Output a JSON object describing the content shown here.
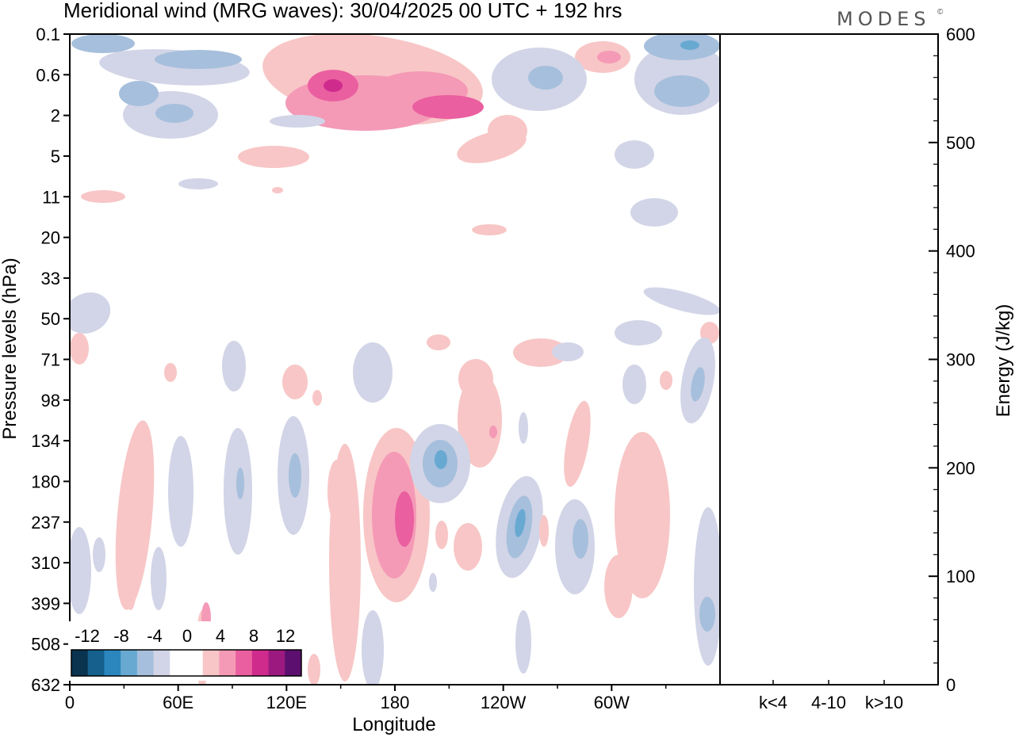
{
  "header": {
    "title": "Meridional wind (MRG waves):  30/04/2025  00 UTC  + 192 hrs",
    "logo": "MODES",
    "logo_mark": "©"
  },
  "chart_data": [
    {
      "type": "heatmap",
      "title": "Meridional wind (MRG waves):  30/04/2025  00 UTC  + 192 hrs",
      "xlabel": "Longitude",
      "ylabel": "Pressure levels (hPa)",
      "x_ticks": [
        "0",
        "60E",
        "120E",
        "180",
        "120W",
        "60W"
      ],
      "x_range": [
        0,
        360
      ],
      "y_ticks": [
        "0.1",
        "0.6",
        "2",
        "5",
        "11",
        "20",
        "33",
        "50",
        "71",
        "98",
        "134",
        "180",
        "237",
        "310",
        "399",
        "508",
        "632"
      ],
      "y_scale": "log",
      "y_inverted": true,
      "colorbar": {
        "labels": [
          "-12",
          "-8",
          "-4",
          "0",
          "4",
          "8",
          "12"
        ],
        "colors": [
          "#0a3350",
          "#15608c",
          "#2a86bd",
          "#68a9d2",
          "#a6bfdc",
          "#d2d5e7",
          "#ffffff",
          "#ffffff",
          "#f8c6c6",
          "#f49ab6",
          "#ea5fa0",
          "#cf2b8d",
          "#9c1a80",
          "#5c0f6e"
        ]
      },
      "features": [
        {
          "sign": "positive",
          "level": 3,
          "lon": 147,
          "p": 0.9
        },
        {
          "sign": "positive",
          "level": 2,
          "lon": 210,
          "p": 1.6
        },
        {
          "sign": "positive",
          "level": 2,
          "lon": 184,
          "p": 220
        },
        {
          "sign": "negative",
          "level": 2,
          "lon": 199,
          "p": 165
        },
        {
          "sign": "negative",
          "level": 2,
          "lon": 250,
          "p": 245
        },
        {
          "sign": "negative",
          "level": 2,
          "lon": 260,
          "p": 0.6
        },
        {
          "sign": "negative",
          "level": 2,
          "lon": 345,
          "p": 0.2
        }
      ]
    },
    {
      "type": "bar",
      "ylabel": "Energy (J/kg)",
      "categories": [
        "k<4",
        "4-10",
        "k>10"
      ],
      "values": [
        0,
        0,
        0
      ],
      "ylim": [
        0,
        600
      ],
      "y_ticks": [
        "0",
        "100",
        "200",
        "300",
        "400",
        "500",
        "600"
      ]
    }
  ],
  "colors": {
    "negative": [
      "#d2d5e7",
      "#a6bfdc",
      "#68a9d2",
      "#2a86bd"
    ],
    "positive": [
      "#f8c6c6",
      "#f49ab6",
      "#ea5fa0",
      "#cf2b8d"
    ]
  }
}
